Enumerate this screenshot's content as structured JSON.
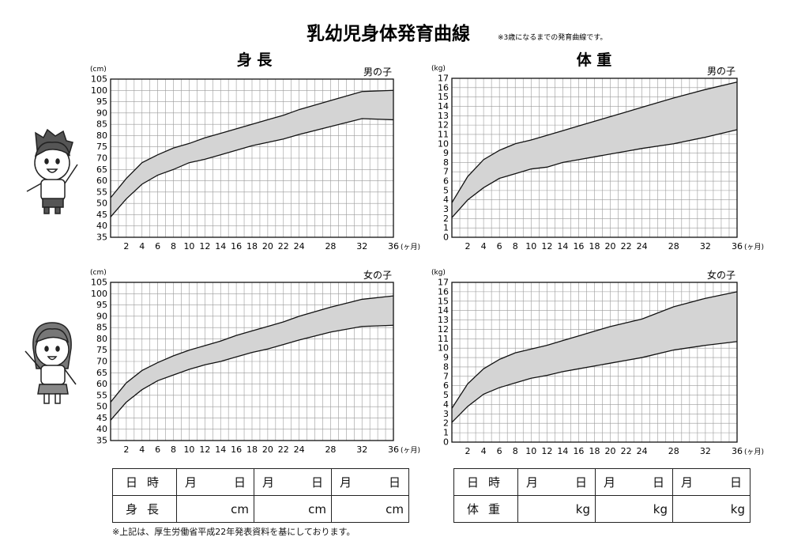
{
  "page": {
    "title": "乳幼児身体発育曲線",
    "subtitle_note": "※3歳になるまでの発育曲線です。",
    "height_heading": "身 長",
    "weight_heading": "体 重",
    "footnote": "※上記は、厚生労働省平成22年発表資料を基にしております。"
  },
  "chart_data": [
    {
      "type": "area",
      "section": "身 長",
      "sex_label": "男の子",
      "unit_label": "(cm)",
      "x_unit_label": "(ヶ月)",
      "xlim": [
        0,
        36
      ],
      "ylim": [
        35,
        105
      ],
      "x_ticks": [
        2,
        4,
        6,
        8,
        10,
        12,
        14,
        16,
        18,
        20,
        22,
        24,
        28,
        32,
        36
      ],
      "y_ticks": [
        35,
        40,
        45,
        50,
        55,
        60,
        65,
        70,
        75,
        80,
        85,
        90,
        95,
        100,
        105
      ],
      "grid": true,
      "x": [
        0,
        2,
        4,
        6,
        8,
        10,
        12,
        14,
        16,
        18,
        20,
        22,
        24,
        28,
        32,
        36
      ],
      "upper": [
        52.5,
        61,
        68,
        71.5,
        74.5,
        76.5,
        79,
        81,
        83,
        85,
        87,
        89,
        91.5,
        95.5,
        99.5,
        100
      ],
      "lower": [
        44,
        52,
        58.5,
        62.5,
        65,
        68,
        69.5,
        71.5,
        73.5,
        75.5,
        77,
        78.5,
        80.5,
        84,
        87.5,
        87
      ]
    },
    {
      "type": "area",
      "section": "体 重",
      "sex_label": "男の子",
      "unit_label": "(kg)",
      "x_unit_label": "(ヶ月)",
      "xlim": [
        0,
        36
      ],
      "ylim": [
        0,
        17
      ],
      "x_ticks": [
        2,
        4,
        6,
        8,
        10,
        12,
        14,
        16,
        18,
        20,
        22,
        24,
        28,
        32,
        36
      ],
      "y_ticks": [
        0,
        1,
        2,
        3,
        4,
        5,
        6,
        7,
        8,
        9,
        10,
        11,
        12,
        13,
        14,
        15,
        16,
        17
      ],
      "grid": true,
      "x": [
        0,
        2,
        4,
        6,
        8,
        10,
        12,
        14,
        16,
        18,
        20,
        22,
        24,
        28,
        32,
        36
      ],
      "upper": [
        3.7,
        6.5,
        8.3,
        9.3,
        10,
        10.4,
        10.9,
        11.4,
        11.9,
        12.4,
        12.9,
        13.4,
        13.9,
        14.9,
        15.8,
        16.6
      ],
      "lower": [
        2.1,
        4,
        5.3,
        6.3,
        6.8,
        7.3,
        7.5,
        8,
        8.3,
        8.6,
        8.9,
        9.2,
        9.5,
        10,
        10.7,
        11.5
      ]
    },
    {
      "type": "area",
      "section": "身 長",
      "sex_label": "女の子",
      "unit_label": "(cm)",
      "x_unit_label": "(ヶ月)",
      "xlim": [
        0,
        36
      ],
      "ylim": [
        35,
        105
      ],
      "x_ticks": [
        2,
        4,
        6,
        8,
        10,
        12,
        14,
        16,
        18,
        20,
        22,
        24,
        28,
        32,
        36
      ],
      "y_ticks": [
        35,
        40,
        45,
        50,
        55,
        60,
        65,
        70,
        75,
        80,
        85,
        90,
        95,
        100,
        105
      ],
      "grid": true,
      "x": [
        0,
        2,
        4,
        6,
        8,
        10,
        12,
        14,
        16,
        18,
        20,
        22,
        24,
        28,
        32,
        36
      ],
      "upper": [
        52,
        60.5,
        66,
        69.5,
        72.5,
        75,
        77,
        79,
        81.5,
        83.5,
        85.5,
        87.5,
        90,
        94,
        97.5,
        99
      ],
      "lower": [
        44,
        52,
        57.5,
        61.5,
        64,
        66.5,
        68.5,
        70,
        72,
        74,
        75.5,
        77.5,
        79.5,
        83,
        85.5,
        86
      ]
    },
    {
      "type": "area",
      "section": "体 重",
      "sex_label": "女の子",
      "unit_label": "(kg)",
      "x_unit_label": "(ヶ月)",
      "xlim": [
        0,
        36
      ],
      "ylim": [
        0,
        17
      ],
      "x_ticks": [
        2,
        4,
        6,
        8,
        10,
        12,
        14,
        16,
        18,
        20,
        22,
        24,
        28,
        32,
        36
      ],
      "y_ticks": [
        0,
        1,
        2,
        3,
        4,
        5,
        6,
        7,
        8,
        9,
        10,
        11,
        12,
        13,
        14,
        15,
        16,
        17
      ],
      "grid": true,
      "x": [
        0,
        2,
        4,
        6,
        8,
        10,
        12,
        14,
        16,
        18,
        20,
        22,
        24,
        28,
        32,
        36
      ],
      "upper": [
        3.6,
        6.2,
        7.8,
        8.8,
        9.5,
        9.9,
        10.3,
        10.8,
        11.3,
        11.8,
        12.3,
        12.7,
        13.1,
        14.4,
        15.3,
        16.0
      ],
      "lower": [
        2.1,
        3.8,
        5.1,
        5.8,
        6.3,
        6.8,
        7.1,
        7.5,
        7.8,
        8.1,
        8.4,
        8.7,
        9.0,
        9.8,
        10.3,
        10.7
      ]
    }
  ],
  "tables": [
    {
      "rows": [
        {
          "header": "日時",
          "cells": [
            [
              "月",
              "日"
            ],
            [
              "月",
              "日"
            ],
            [
              "月",
              "日"
            ]
          ]
        },
        {
          "header": "身長",
          "cells": [
            "cm",
            "cm",
            "cm"
          ]
        }
      ]
    },
    {
      "rows": [
        {
          "header": "日時",
          "cells": [
            [
              "月",
              "日"
            ],
            [
              "月",
              "日"
            ],
            [
              "月",
              "日"
            ]
          ]
        },
        {
          "header": "体重",
          "cells": [
            "kg",
            "kg",
            "kg"
          ]
        }
      ]
    }
  ]
}
